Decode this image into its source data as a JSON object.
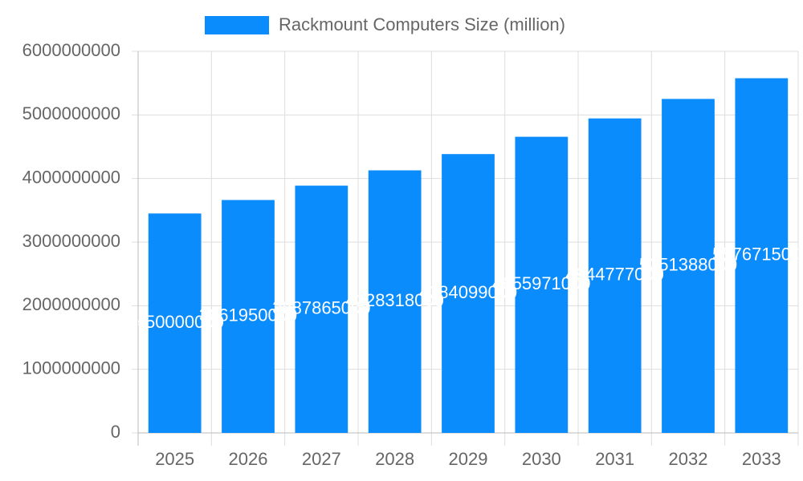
{
  "chart_data": {
    "type": "bar",
    "categories": [
      "2025",
      "2026",
      "2027",
      "2028",
      "2029",
      "2030",
      "2031",
      "2032",
      "2033"
    ],
    "series": [
      {
        "name": "Rackmount Computers Size (million)",
        "color": "#0a8cfc",
        "values": [
          3450000000,
          3661950000,
          3887865000,
          4128318000,
          4384099000,
          4655971000,
          4944777000,
          5251388000,
          5576715000
        ]
      }
    ],
    "ylim": [
      0,
      6000000000
    ],
    "yticks": [
      0,
      1000000000,
      2000000000,
      3000000000,
      4000000000,
      5000000000,
      6000000000
    ],
    "grid": true,
    "legend": "top",
    "data_labels": true
  }
}
